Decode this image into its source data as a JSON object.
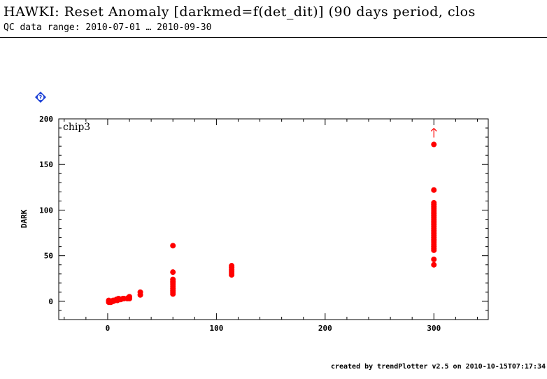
{
  "header": {
    "title": "HAWKI: Reset Anomaly [darkmed=f(det_dit)] (90 days period, clos",
    "subtitle": "QC data range: 2010-07-01 … 2010-09-30"
  },
  "footer": {
    "text": "created by trendPlotter v2.5 on 2010-10-15T07:17:34"
  },
  "help_icon": {
    "name": "help-diamond-icon",
    "glyph": "?"
  },
  "colors": {
    "points": "#ff0000",
    "axis": "#000000",
    "help_icon": "#1a3fd6"
  },
  "chart_data": {
    "type": "scatter",
    "panel_label": "chip3",
    "ylabel": "DARK",
    "xlabel": "",
    "xlim": [
      -45,
      350
    ],
    "ylim": [
      -20,
      200
    ],
    "x_ticks": [
      0,
      100,
      200,
      300
    ],
    "x_tick_labels": [
      "0",
      "100",
      "200",
      "300"
    ],
    "y_ticks": [
      0,
      50,
      100,
      150,
      200
    ],
    "y_tick_labels": [
      "0",
      "50",
      "100",
      "150",
      "200"
    ],
    "grid": false,
    "points": [
      [
        1,
        0
      ],
      [
        1,
        -1
      ],
      [
        1,
        1
      ],
      [
        2,
        0
      ],
      [
        2,
        -1
      ],
      [
        3,
        0
      ],
      [
        3,
        -1
      ],
      [
        4,
        0
      ],
      [
        5,
        0
      ],
      [
        5,
        1
      ],
      [
        6,
        1
      ],
      [
        7,
        1
      ],
      [
        8,
        2
      ],
      [
        9,
        1
      ],
      [
        10,
        2
      ],
      [
        10,
        3
      ],
      [
        12,
        2
      ],
      [
        14,
        3
      ],
      [
        15,
        3
      ],
      [
        18,
        3
      ],
      [
        19,
        4
      ],
      [
        20,
        5
      ],
      [
        20,
        3
      ],
      [
        30,
        7
      ],
      [
        30,
        10
      ],
      [
        60,
        61
      ],
      [
        60,
        32
      ],
      [
        60,
        24
      ],
      [
        60,
        22
      ],
      [
        60,
        20
      ],
      [
        60,
        18
      ],
      [
        60,
        16
      ],
      [
        60,
        14
      ],
      [
        60,
        12
      ],
      [
        60,
        10
      ],
      [
        60,
        8
      ],
      [
        114,
        39
      ],
      [
        114,
        37
      ],
      [
        114,
        35
      ],
      [
        114,
        33
      ],
      [
        114,
        31
      ],
      [
        114,
        29
      ],
      [
        300,
        172
      ],
      [
        300,
        122
      ],
      [
        300,
        108
      ],
      [
        300,
        106
      ],
      [
        300,
        104
      ],
      [
        300,
        102
      ],
      [
        300,
        100
      ],
      [
        300,
        98
      ],
      [
        300,
        96
      ],
      [
        300,
        94
      ],
      [
        300,
        92
      ],
      [
        300,
        90
      ],
      [
        300,
        88
      ],
      [
        300,
        86
      ],
      [
        300,
        84
      ],
      [
        300,
        82
      ],
      [
        300,
        80
      ],
      [
        300,
        78
      ],
      [
        300,
        76
      ],
      [
        300,
        74
      ],
      [
        300,
        72
      ],
      [
        300,
        70
      ],
      [
        300,
        68
      ],
      [
        300,
        66
      ],
      [
        300,
        64
      ],
      [
        300,
        62
      ],
      [
        300,
        60
      ],
      [
        300,
        58
      ],
      [
        300,
        56
      ],
      [
        300,
        46
      ],
      [
        300,
        40
      ]
    ],
    "off_scale_markers": [
      {
        "x": 300,
        "y": 185
      }
    ]
  }
}
